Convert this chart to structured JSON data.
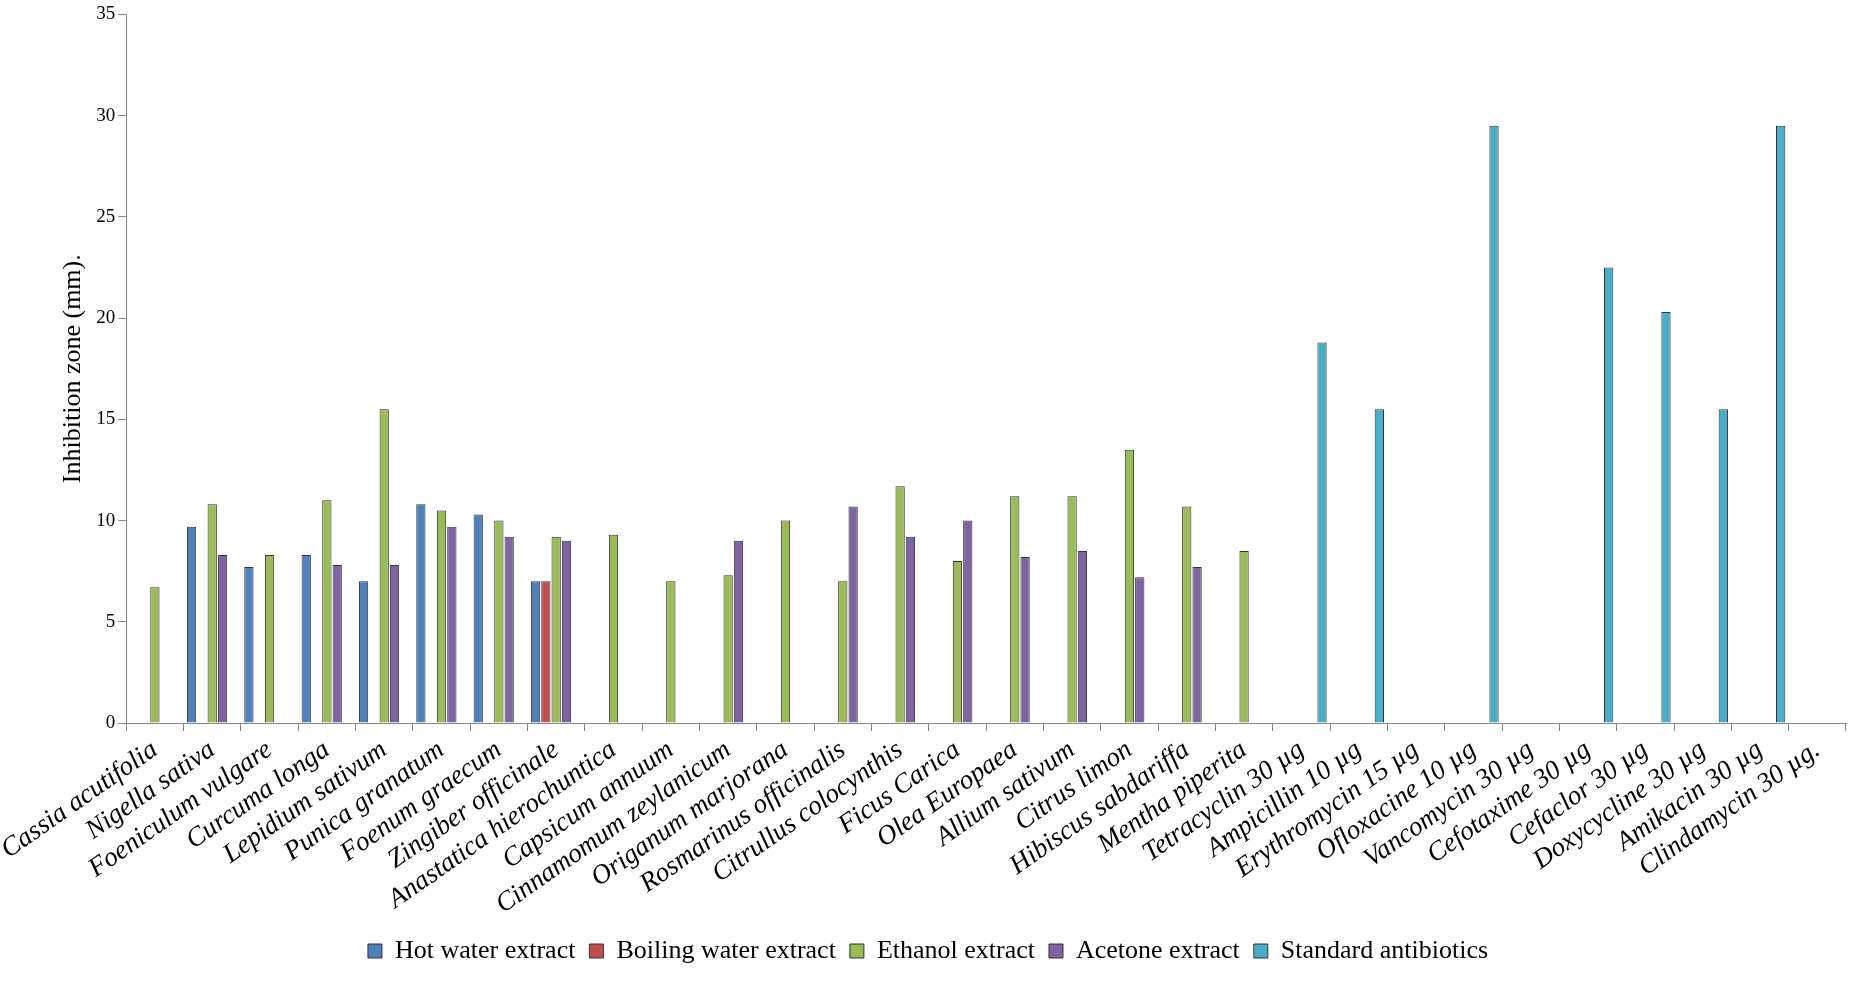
{
  "chart_data": {
    "type": "bar",
    "ylabel": "Inhibition zone (mm).",
    "categories": [
      "Cassia acutifolia",
      "Nigella sativa",
      "Foeniculum vulgare",
      "Curcuma longa",
      "Lepidium sativum",
      "Punica granatum",
      "Foenum graecum",
      "Zingiber officinale",
      "Anastatica hierochuntica",
      "Capsicum annuum",
      "Cinnamomum zeylanicum",
      "Origanum marjorana",
      "Rosmarinus officinalis",
      "Citrullus colocynthis",
      "Ficus Carica",
      "Olea Europaea",
      "Allium sativum",
      "Citrus limon",
      "Hibiscus sabdariffa",
      "Mentha piperita",
      "Tetracyclin 30 µg",
      "Ampicillin 10 µg",
      "Erythromycin 15 µg",
      "Ofloxacine 10 µg",
      "Vancomycin 30 µg",
      "Cefotaxime 30 µg",
      "Cefaclor 30 µg",
      "Doxycycline 30 µg",
      "Amikacin 30 µg",
      "Clindamycin 30 µg."
    ],
    "series": [
      {
        "name": "Hot water extract",
        "color": "#4f81bd",
        "values": [
          null,
          9.7,
          7.7,
          8.3,
          7.0,
          10.8,
          10.3,
          7.0,
          null,
          null,
          null,
          null,
          null,
          null,
          null,
          null,
          null,
          null,
          null,
          null,
          null,
          null,
          null,
          null,
          null,
          null,
          null,
          null,
          null,
          null
        ]
      },
      {
        "name": "Boiling water extract",
        "color": "#c0504d",
        "values": [
          null,
          null,
          null,
          null,
          null,
          null,
          null,
          7.0,
          null,
          null,
          null,
          null,
          null,
          null,
          null,
          null,
          null,
          null,
          null,
          null,
          null,
          null,
          null,
          null,
          null,
          null,
          null,
          null,
          null,
          null
        ]
      },
      {
        "name": "Ethanol extract",
        "color": "#9bbb59",
        "values": [
          6.7,
          10.8,
          8.3,
          11.0,
          15.5,
          10.5,
          10.0,
          9.2,
          9.3,
          7.0,
          7.3,
          10.0,
          7.0,
          11.7,
          8.0,
          11.2,
          11.2,
          13.5,
          10.7,
          8.5,
          null,
          null,
          null,
          null,
          null,
          null,
          null,
          null,
          null,
          null
        ]
      },
      {
        "name": "Acetone extract",
        "color": "#8064a2",
        "values": [
          null,
          8.3,
          null,
          7.8,
          7.8,
          9.7,
          9.2,
          9.0,
          null,
          null,
          9.0,
          null,
          10.7,
          9.2,
          10.0,
          8.2,
          8.5,
          7.2,
          7.7,
          null,
          null,
          null,
          null,
          null,
          null,
          null,
          null,
          null,
          null,
          null
        ]
      },
      {
        "name": "Standard antibiotics",
        "color": "#4bacc6",
        "values": [
          null,
          null,
          null,
          null,
          null,
          null,
          null,
          null,
          null,
          null,
          null,
          null,
          null,
          null,
          null,
          null,
          null,
          null,
          null,
          null,
          18.8,
          15.5,
          null,
          29.5,
          null,
          22.5,
          20.3,
          15.5,
          29.5,
          null
        ]
      }
    ],
    "ylim": [
      0,
      35
    ],
    "yticks": [
      0,
      5,
      10,
      15,
      20,
      25,
      30,
      35
    ],
    "grid": false,
    "legend": "bottom"
  }
}
